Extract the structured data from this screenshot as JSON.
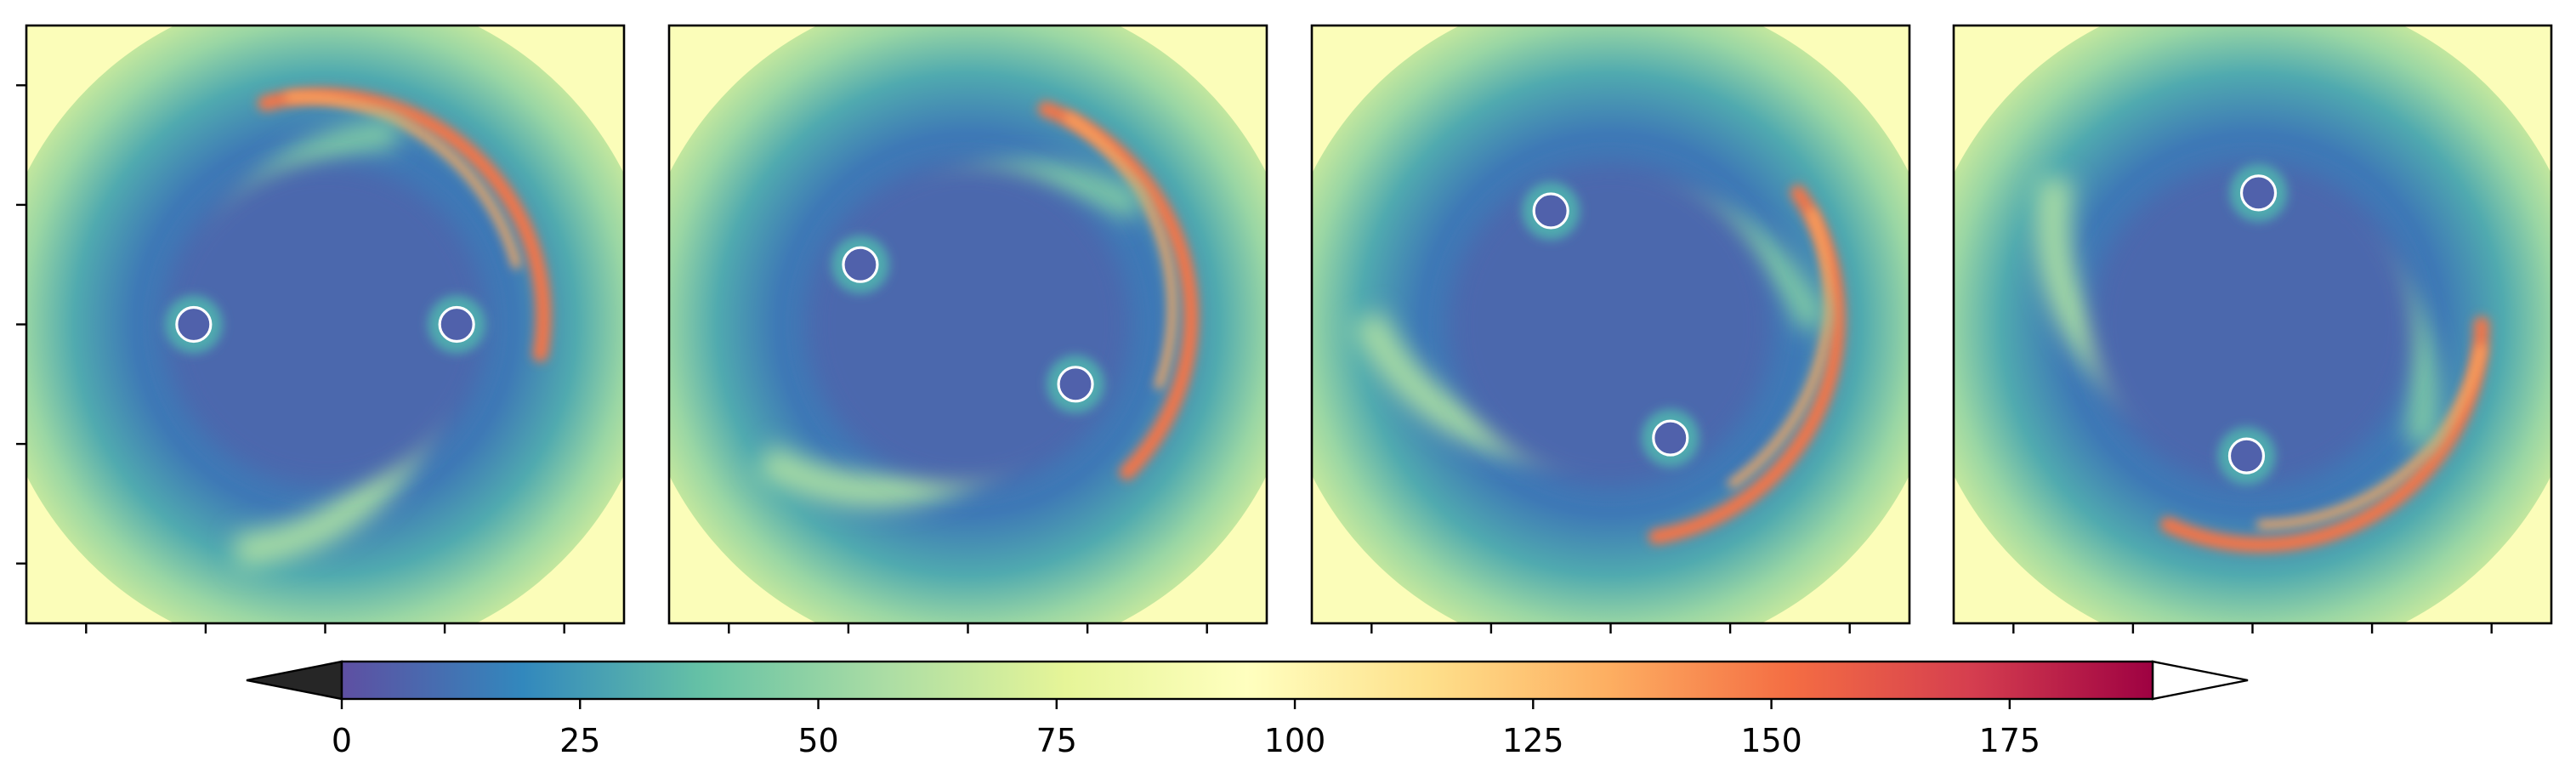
{
  "chart_data": {
    "type": "heatmap",
    "title": "",
    "xlabel": "",
    "ylabel": "",
    "panels": [
      {
        "id": "snapshot-1",
        "spiral_phase_deg": 0,
        "binaries": [
          [
            -0.22,
            0.0
          ],
          [
            0.22,
            0.0
          ]
        ]
      },
      {
        "id": "snapshot-2",
        "spiral_phase_deg": 35,
        "binaries": [
          [
            -0.18,
            -0.1
          ],
          [
            0.18,
            0.1
          ]
        ]
      },
      {
        "id": "snapshot-3",
        "spiral_phase_deg": 70,
        "binaries": [
          [
            -0.1,
            -0.19
          ],
          [
            0.1,
            0.19
          ]
        ]
      },
      {
        "id": "snapshot-4",
        "spiral_phase_deg": 105,
        "binaries": [
          [
            0.01,
            -0.22
          ],
          [
            -0.01,
            0.22
          ]
        ]
      }
    ],
    "axis_ticks_per_side": 5,
    "tick_labels_visible": false,
    "colorbar": {
      "orientation": "horizontal",
      "colormap": "Spectral_r",
      "range": [
        0,
        190
      ],
      "extend": "both",
      "ticks": [
        0,
        25,
        50,
        75,
        100,
        125,
        150,
        175
      ],
      "tick_labels": [
        "0",
        "25",
        "50",
        "75",
        "100",
        "125",
        "150",
        "175"
      ],
      "under_color": "#262626",
      "over_color": "#ffffff",
      "stops": [
        "#5e4fa2",
        "#3288bd",
        "#66c2a5",
        "#abdda4",
        "#e6f598",
        "#ffffbf",
        "#fee08b",
        "#fdae61",
        "#f46d43",
        "#d53e4f",
        "#9e0142"
      ]
    }
  }
}
